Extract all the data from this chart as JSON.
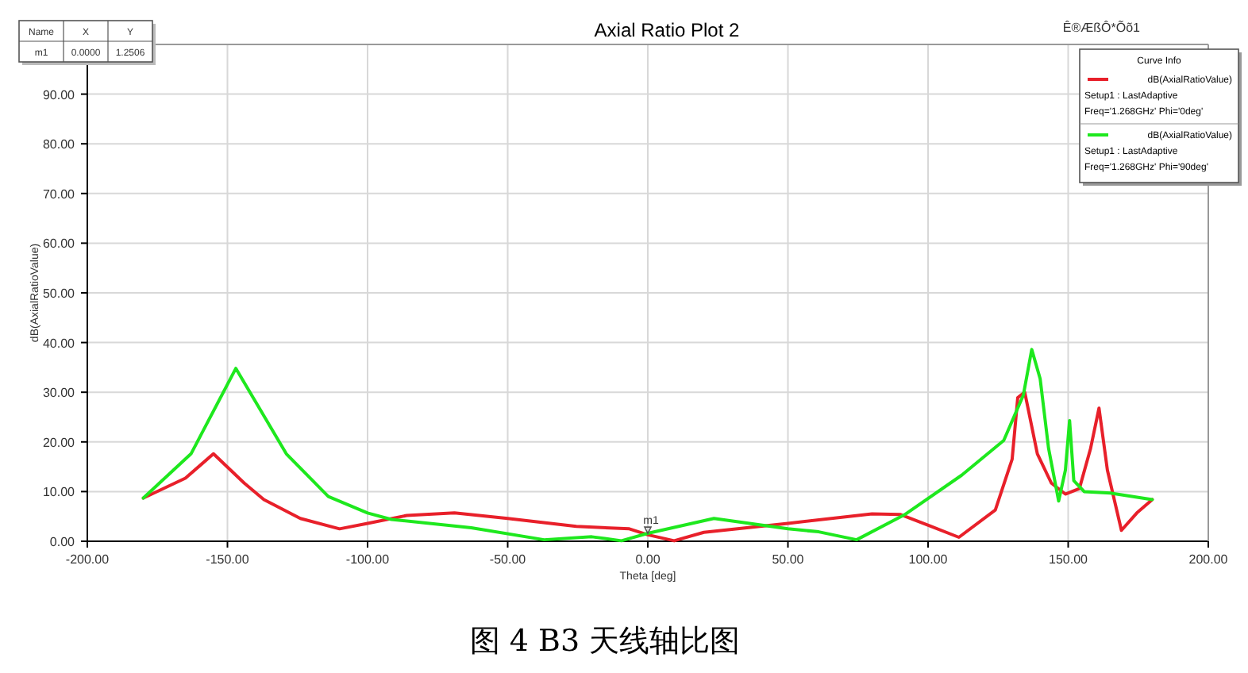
{
  "chart_data": {
    "type": "line",
    "title": "Axial Ratio Plot 2",
    "xlabel": "Theta [deg]",
    "ylabel": "dB(AxialRatioValue)",
    "legend_title": "Curve Info",
    "xlim": [
      -200,
      200
    ],
    "ylim": [
      0,
      100
    ],
    "xticks": [
      {
        "value": -200,
        "label": "-200.00"
      },
      {
        "value": -150,
        "label": "-150.00"
      },
      {
        "value": -100,
        "label": "-100.00"
      },
      {
        "value": -50,
        "label": "-50.00"
      },
      {
        "value": 0,
        "label": "0.00"
      },
      {
        "value": 50,
        "label": "50.00"
      },
      {
        "value": 100,
        "label": "100.00"
      },
      {
        "value": 150,
        "label": "150.00"
      },
      {
        "value": 200,
        "label": "200.00"
      }
    ],
    "yticks": [
      {
        "value": 0,
        "label": "0.00"
      },
      {
        "value": 10,
        "label": "10.00"
      },
      {
        "value": 20,
        "label": "20.00"
      },
      {
        "value": 30,
        "label": "30.00"
      },
      {
        "value": 40,
        "label": "40.00"
      },
      {
        "value": 50,
        "label": "50.00"
      },
      {
        "value": 60,
        "label": "60.00"
      },
      {
        "value": 70,
        "label": "70.00"
      },
      {
        "value": 80,
        "label": "80.00"
      },
      {
        "value": 90,
        "label": "90.00"
      }
    ],
    "grid": true,
    "legend": "top right",
    "marker": "none",
    "line_style": "solid",
    "annotations": [
      {
        "text": "m1",
        "x": 0,
        "y": 1.2506
      },
      "Name",
      "X",
      "Y",
      "m1",
      "0.0000",
      "1.2506",
      "Ê®ÆßÔ*Õõ1",
      "图 4 B3 天线轴比图"
    ],
    "series": [
      {
        "name": "dB(AxialRatioValue)\nSetup1 : LastAdaptive\nFreq='1.268GHz' Phi='0deg'",
        "color": "#e8202a",
        "x": [
          -180,
          -165,
          -155,
          -144,
          -137,
          -124,
          -110,
          -100,
          -86,
          -69,
          -50,
          -25.5,
          -6.6,
          0,
          9.4,
          20,
          50,
          80,
          90,
          101,
          111,
          124,
          130,
          132,
          134.5,
          139,
          144,
          149,
          154,
          158,
          161,
          164,
          169,
          174.5,
          180
        ],
        "values": [
          8.7,
          12.7,
          17.6,
          11.7,
          8.4,
          4.6,
          2.5,
          3.6,
          5.2,
          5.7,
          4.6,
          3.0,
          2.5,
          1.3,
          0.1,
          1.8,
          3.6,
          5.5,
          5.4,
          3.0,
          0.8,
          6.3,
          16.5,
          28.9,
          30,
          17.6,
          11.7,
          9.5,
          10.6,
          18.7,
          26.8,
          14.3,
          2.2,
          5.7,
          8.4
        ]
      },
      {
        "name": "dB(AxialRatioValue)\nSetup1 : LastAdaptive\nFreq='1.268GHz' Phi='90deg'",
        "color": "#1ee81e",
        "x": [
          -180,
          -163,
          -147,
          -129,
          -114,
          -100,
          -91.5,
          -63,
          -37,
          -20,
          -9.4,
          0,
          23.6,
          50,
          61,
          74.5,
          91.5,
          112,
          127,
          134,
          137,
          140,
          143,
          146.6,
          149,
          150.5,
          152,
          155.7,
          165,
          180
        ],
        "values": [
          8.7,
          17.6,
          34.8,
          17.6,
          9,
          5.7,
          4.4,
          2.7,
          0.3,
          0.9,
          0.1,
          1.6,
          4.6,
          2.5,
          1.9,
          0.3,
          5.3,
          13.3,
          20.3,
          29.4,
          38.6,
          32.7,
          18.7,
          8.1,
          14.3,
          24.3,
          12.2,
          10,
          9.7,
          8.4
        ]
      }
    ]
  }
}
